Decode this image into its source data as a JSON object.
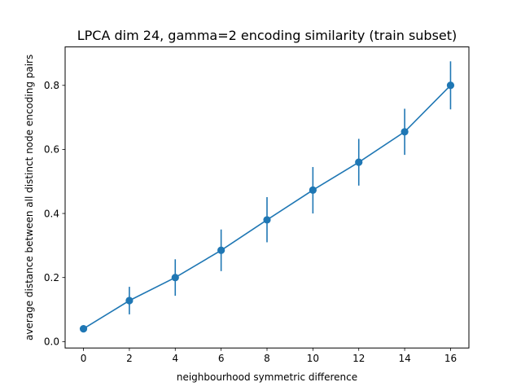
{
  "chart_data": {
    "type": "line",
    "title": "LPCA dim 24, gamma=2 encoding similarity (train subset)",
    "xlabel": "neighbourhood symmetric difference",
    "ylabel": "average distance between all distinct node encoding pairs",
    "xlim": [
      -0.8,
      16.8
    ],
    "ylim": [
      -0.02,
      0.92
    ],
    "xticks": [
      0,
      2,
      4,
      6,
      8,
      10,
      12,
      14,
      16
    ],
    "xtick_labels": [
      "0",
      "2",
      "4",
      "6",
      "8",
      "10",
      "12",
      "14",
      "16"
    ],
    "yticks": [
      0.0,
      0.2,
      0.4,
      0.6,
      0.8
    ],
    "ytick_labels": [
      "0.0",
      "0.2",
      "0.4",
      "0.6",
      "0.8"
    ],
    "grid": false,
    "series": [
      {
        "color": "#1f77b4",
        "x": [
          0,
          2,
          4,
          6,
          8,
          10,
          12,
          14,
          16
        ],
        "y": [
          0.04,
          0.128,
          0.2,
          0.285,
          0.38,
          0.473,
          0.56,
          0.655,
          0.8
        ],
        "err_low": [
          0.03,
          0.085,
          0.143,
          0.22,
          0.31,
          0.4,
          0.487,
          0.583,
          0.725
        ],
        "err_high": [
          0.051,
          0.171,
          0.257,
          0.35,
          0.451,
          0.545,
          0.633,
          0.727,
          0.875
        ]
      }
    ]
  }
}
